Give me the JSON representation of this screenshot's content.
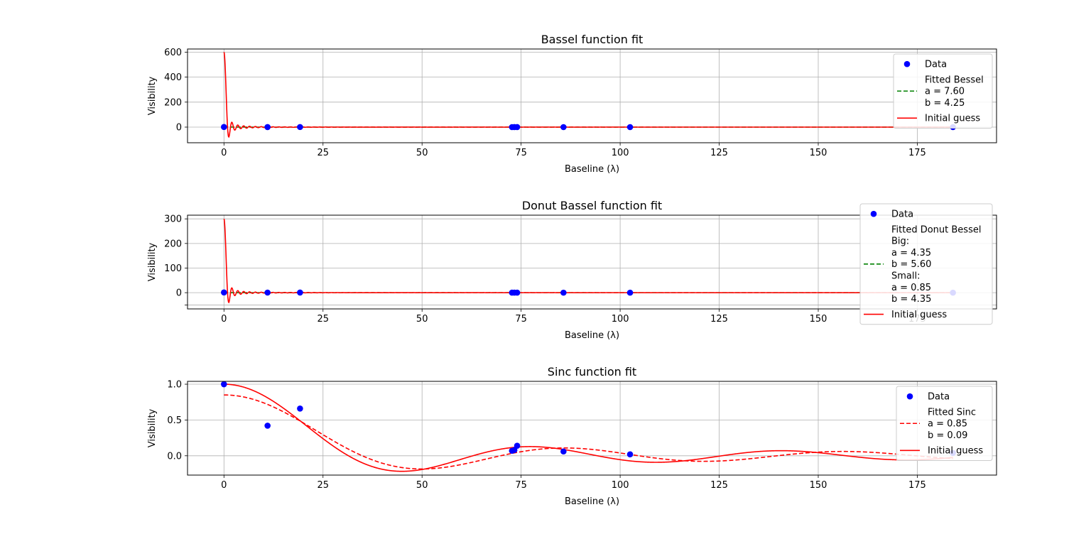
{
  "figure": {
    "background": "#ffffff"
  },
  "chart_data": [
    {
      "type": "line",
      "title": "Bassel function fit",
      "xlabel": "Baseline (λ)",
      "ylabel": "Visibility",
      "xlim": [
        -9.2,
        195
      ],
      "ylim": [
        -125,
        625
      ],
      "xticks": [
        0,
        25,
        50,
        75,
        100,
        125,
        150,
        175
      ],
      "xtick_labels": [
        "0",
        "25",
        "50",
        "75",
        "100",
        "125",
        "150",
        "175"
      ],
      "yticks": [
        0,
        200,
        400,
        600
      ],
      "ytick_labels": [
        "0",
        "200",
        "400",
        "600"
      ],
      "grid": true,
      "legend_position": "top-right",
      "data_points": {
        "name": "Data",
        "color": "#0000ff",
        "x": [
          0,
          11,
          19.2,
          72.7,
          73.3,
          74,
          85.7,
          102.5,
          184
        ],
        "y": [
          1,
          0.42,
          0.66,
          0.07,
          0.08,
          0.14,
          0.06,
          0.02,
          0.04
        ]
      },
      "curve_model": "bessel",
      "fitted": {
        "label_lines": [
          "Fitted Bessel",
          "a = 7.60",
          "b = 4.25"
        ],
        "color": "#008000",
        "style": "dashed",
        "params": {
          "a": 7.6,
          "b": 4.25
        }
      },
      "initial": {
        "label_lines": [
          "Initial guess"
        ],
        "color": "#ff0000",
        "style": "solid",
        "params": {
          "amp": 600,
          "k": 4.25
        }
      }
    },
    {
      "type": "line",
      "title": "Donut Bassel function fit",
      "xlabel": "Baseline (λ)",
      "ylabel": "Visibility",
      "xlim": [
        -9.2,
        195
      ],
      "ylim": [
        -66,
        315
      ],
      "xticks": [
        0,
        25,
        50,
        75,
        100,
        125,
        150,
        175
      ],
      "xtick_labels": [
        "0",
        "25",
        "50",
        "75",
        "100",
        "125",
        "150",
        "175"
      ],
      "yticks": [
        -50,
        0,
        100,
        200,
        300
      ],
      "ytick_labels": [
        "",
        "0",
        "100",
        "200",
        "300"
      ],
      "grid": true,
      "legend_position": "right",
      "data_points": {
        "name": "Data",
        "color": "#0000ff",
        "x": [
          0,
          11,
          19.2,
          72.7,
          73.3,
          74,
          85.7,
          102.5,
          184
        ],
        "y": [
          1,
          0.42,
          0.66,
          0.07,
          0.08,
          0.14,
          0.06,
          0.02,
          0.04
        ]
      },
      "curve_model": "donut",
      "fitted": {
        "label_lines": [
          "Fitted Donut Bessel",
          "Big:",
          "a = 4.35",
          "b = 5.60",
          "Small:",
          "a = 0.85",
          "b = 4.35"
        ],
        "color": "#008000",
        "style": "dashed",
        "params": {
          "big_a": 4.35,
          "big_b": 5.6,
          "small_a": 0.85,
          "small_b": 4.35
        }
      },
      "initial": {
        "label_lines": [
          "Initial guess"
        ],
        "color": "#ff0000",
        "style": "solid",
        "params": {
          "amp": 300,
          "k": 4.25
        }
      }
    },
    {
      "type": "line",
      "title": "Sinc function fit",
      "xlabel": "Baseline (λ)",
      "ylabel": "Visibility",
      "xlim": [
        -9.2,
        195
      ],
      "ylim": [
        -0.27,
        1.04
      ],
      "xticks": [
        0,
        25,
        50,
        75,
        100,
        125,
        150,
        175
      ],
      "xtick_labels": [
        "0",
        "25",
        "50",
        "75",
        "100",
        "125",
        "150",
        "175"
      ],
      "yticks": [
        0,
        0.5,
        1.0
      ],
      "ytick_labels": [
        "0.0",
        "0.5",
        "1.0"
      ],
      "grid": true,
      "legend_position": "top-right",
      "data_points": {
        "name": "Data",
        "color": "#0000ff",
        "x": [
          0,
          11,
          19.2,
          72.7,
          73.3,
          74,
          85.7,
          102.5,
          184
        ],
        "y": [
          1,
          0.42,
          0.66,
          0.07,
          0.08,
          0.14,
          0.06,
          0.02,
          0.04
        ]
      },
      "curve_model": "sinc",
      "fitted": {
        "label_lines": [
          "Fitted Sinc",
          "a = 0.85",
          "b = 0.09"
        ],
        "color": "#ff0000",
        "style": "dashed",
        "params": {
          "a": 0.85,
          "b": 0.09
        }
      },
      "initial": {
        "label_lines": [
          "Initial guess"
        ],
        "color": "#ff0000",
        "style": "solid",
        "params": {
          "a": 1.0,
          "b": 0.1
        }
      }
    }
  ]
}
